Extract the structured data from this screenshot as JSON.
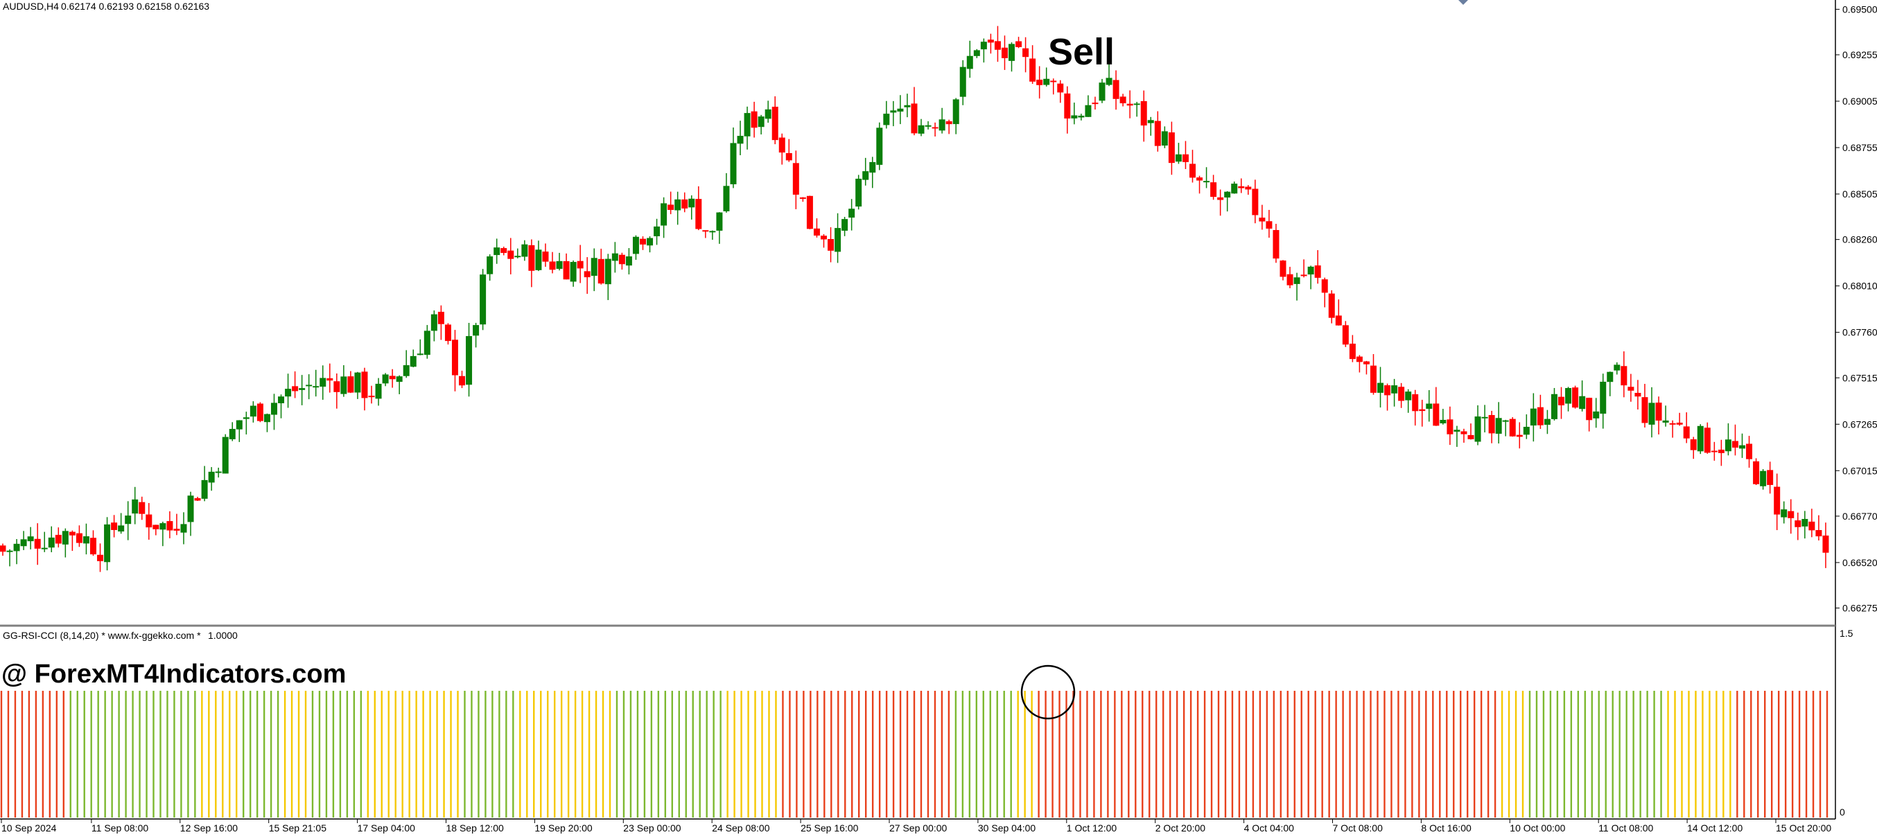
{
  "header": {
    "symbol": "AUDUSD,H4",
    "ohlc": "0.62174 0.62193 0.62158 0.62163"
  },
  "annotations": {
    "signal_label": "Sell",
    "watermark": "@ ForexMT4Indicators.com"
  },
  "indicator": {
    "title": "GG-RSI-CCI (8,14,20) * www.fx-ggekko.com *",
    "value": "1.0000",
    "scale_top": "1.5",
    "scale_bottom": "0"
  },
  "colors": {
    "bull": "#0a7f0a",
    "bear": "#ff0000",
    "ind_red": "#e8401c",
    "ind_yellow": "#f5c800",
    "ind_green": "#7cb82f",
    "axis": "#000000",
    "separator": "#808080"
  },
  "chart_data": [
    {
      "type": "candlestick",
      "symbol": "AUDUSD",
      "timeframe": "H4",
      "y_ticks": [
        "0.69500",
        "0.69255",
        "0.69005",
        "0.68755",
        "0.68505",
        "0.68260",
        "0.68010",
        "0.67760",
        "0.67515",
        "0.67265",
        "0.67015",
        "0.66770",
        "0.66520",
        "0.66275"
      ],
      "x_ticks": [
        "10 Sep 2024",
        "11 Sep 08:00",
        "12 Sep 16:00",
        "15 Sep 21:05",
        "17 Sep 04:00",
        "18 Sep 12:00",
        "19 Sep 20:00",
        "23 Sep 00:00",
        "24 Sep 08:00",
        "25 Sep 16:00",
        "27 Sep 00:00",
        "30 Sep 04:00",
        "1 Oct 12:00",
        "2 Oct 20:00",
        "4 Oct 04:00",
        "7 Oct 08:00",
        "8 Oct 16:00",
        "10 Oct 00:00",
        "11 Oct 08:00",
        "14 Oct 12:00",
        "15 Oct 20:00"
      ],
      "ylim": [
        0.6618,
        0.6955
      ],
      "close_path": [
        [
          0,
          0.6658
        ],
        [
          6,
          0.6666
        ],
        [
          10,
          0.6669
        ],
        [
          14,
          0.666
        ],
        [
          18,
          0.6681
        ],
        [
          24,
          0.667
        ],
        [
          30,
          0.6701
        ],
        [
          34,
          0.6729
        ],
        [
          42,
          0.6745
        ],
        [
          48,
          0.6751
        ],
        [
          54,
          0.6743
        ],
        [
          58,
          0.6759
        ],
        [
          62,
          0.6782
        ],
        [
          66,
          0.6751
        ],
        [
          70,
          0.6816
        ],
        [
          74,
          0.6818
        ],
        [
          80,
          0.6813
        ],
        [
          86,
          0.681
        ],
        [
          90,
          0.6824
        ],
        [
          94,
          0.6836
        ],
        [
          98,
          0.6849
        ],
        [
          102,
          0.6827
        ],
        [
          106,
          0.6885
        ],
        [
          110,
          0.6898
        ],
        [
          116,
          0.6835
        ],
        [
          120,
          0.6825
        ],
        [
          124,
          0.686
        ],
        [
          128,
          0.6898
        ],
        [
          132,
          0.6888
        ],
        [
          136,
          0.6895
        ],
        [
          140,
          0.6932
        ],
        [
          146,
          0.6922
        ],
        [
          150,
          0.6913
        ],
        [
          154,
          0.6892
        ],
        [
          158,
          0.6908
        ],
        [
          162,
          0.6898
        ],
        [
          166,
          0.6884
        ],
        [
          170,
          0.6862
        ],
        [
          174,
          0.6847
        ],
        [
          178,
          0.6849
        ],
        [
          182,
          0.6836
        ],
        [
          184,
          0.6804
        ],
        [
          188,
          0.6808
        ],
        [
          190,
          0.6797
        ],
        [
          194,
          0.6762
        ],
        [
          198,
          0.6745
        ],
        [
          202,
          0.6738
        ],
        [
          206,
          0.673
        ],
        [
          210,
          0.6728
        ],
        [
          214,
          0.6721
        ],
        [
          218,
          0.6725
        ],
        [
          222,
          0.6735
        ],
        [
          226,
          0.6741
        ],
        [
          228,
          0.6732
        ],
        [
          232,
          0.6752
        ],
        [
          236,
          0.6733
        ],
        [
          240,
          0.6727
        ],
        [
          244,
          0.6718
        ],
        [
          248,
          0.6715
        ],
        [
          252,
          0.6701
        ],
        [
          256,
          0.6678
        ],
        [
          262,
          0.6658
        ]
      ]
    },
    {
      "type": "bar",
      "name": "GG-RSI-CCI",
      "ylim": [
        0,
        1.5
      ],
      "value": 1.0,
      "color_segments": [
        {
          "from": 0,
          "to": 9,
          "color": "red"
        },
        {
          "from": 10,
          "to": 28,
          "color": "green"
        },
        {
          "from": 29,
          "to": 34,
          "color": "yellow"
        },
        {
          "from": 35,
          "to": 40,
          "color": "green"
        },
        {
          "from": 41,
          "to": 44,
          "color": "yellow"
        },
        {
          "from": 45,
          "to": 52,
          "color": "green"
        },
        {
          "from": 53,
          "to": 56,
          "color": "yellow"
        },
        {
          "from": 57,
          "to": 66,
          "color": "yellow"
        },
        {
          "from": 67,
          "to": 74,
          "color": "green"
        },
        {
          "from": 75,
          "to": 88,
          "color": "yellow"
        },
        {
          "from": 89,
          "to": 104,
          "color": "green"
        },
        {
          "from": 105,
          "to": 112,
          "color": "yellow"
        },
        {
          "from": 113,
          "to": 137,
          "color": "red"
        },
        {
          "from": 138,
          "to": 146,
          "color": "green"
        },
        {
          "from": 147,
          "to": 149,
          "color": "yellow"
        },
        {
          "from": 150,
          "to": 216,
          "color": "red"
        },
        {
          "from": 217,
          "to": 220,
          "color": "yellow"
        },
        {
          "from": 221,
          "to": 240,
          "color": "green"
        },
        {
          "from": 241,
          "to": 250,
          "color": "yellow"
        },
        {
          "from": 251,
          "to": 264,
          "color": "red"
        }
      ]
    }
  ]
}
